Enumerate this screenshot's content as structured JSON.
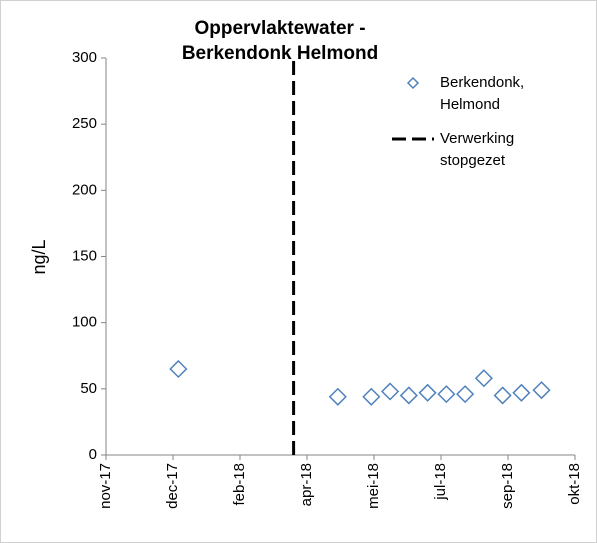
{
  "chart_data": {
    "type": "scatter",
    "title": "Oppervlaktewater - Berkendonk Helmond",
    "y_label": "ng/L",
    "ylim": [
      0,
      300
    ],
    "yticks": [
      0,
      50,
      100,
      150,
      200,
      250,
      300
    ],
    "xlim": [
      "2017-11-05",
      "2018-10-21"
    ],
    "xticks": [
      {
        "value": "2017-11-05",
        "label": "nov-17"
      },
      {
        "value": "2017-12-25",
        "label": "dec-17"
      },
      {
        "value": "2018-02-13",
        "label": "feb-18"
      },
      {
        "value": "2018-04-04",
        "label": "apr-18"
      },
      {
        "value": "2018-05-24",
        "label": "mei-18"
      },
      {
        "value": "2018-07-13",
        "label": "jul-18"
      },
      {
        "value": "2018-09-01",
        "label": "sep-18"
      },
      {
        "value": "2018-10-21",
        "label": "okt-18"
      }
    ],
    "series": [
      {
        "name": "Berkendonk, Helmond",
        "color": "#4f81bd",
        "marker": "diamond",
        "x": [
          "2017-12-29",
          "2018-04-27",
          "2018-05-22",
          "2018-06-05",
          "2018-06-19",
          "2018-07-03",
          "2018-07-17",
          "2018-07-31",
          "2018-08-14",
          "2018-08-28",
          "2018-09-11",
          "2018-09-26"
        ],
        "values": [
          65,
          44,
          44,
          48,
          45,
          47,
          46,
          46,
          58,
          45,
          47,
          49
        ]
      },
      {
        "name": "Verwerking stopgezet",
        "color": "#000000",
        "line": "dashed",
        "x": [
          "2018-03-25",
          "2018-03-25"
        ],
        "values": [
          0,
          300
        ]
      }
    ]
  }
}
